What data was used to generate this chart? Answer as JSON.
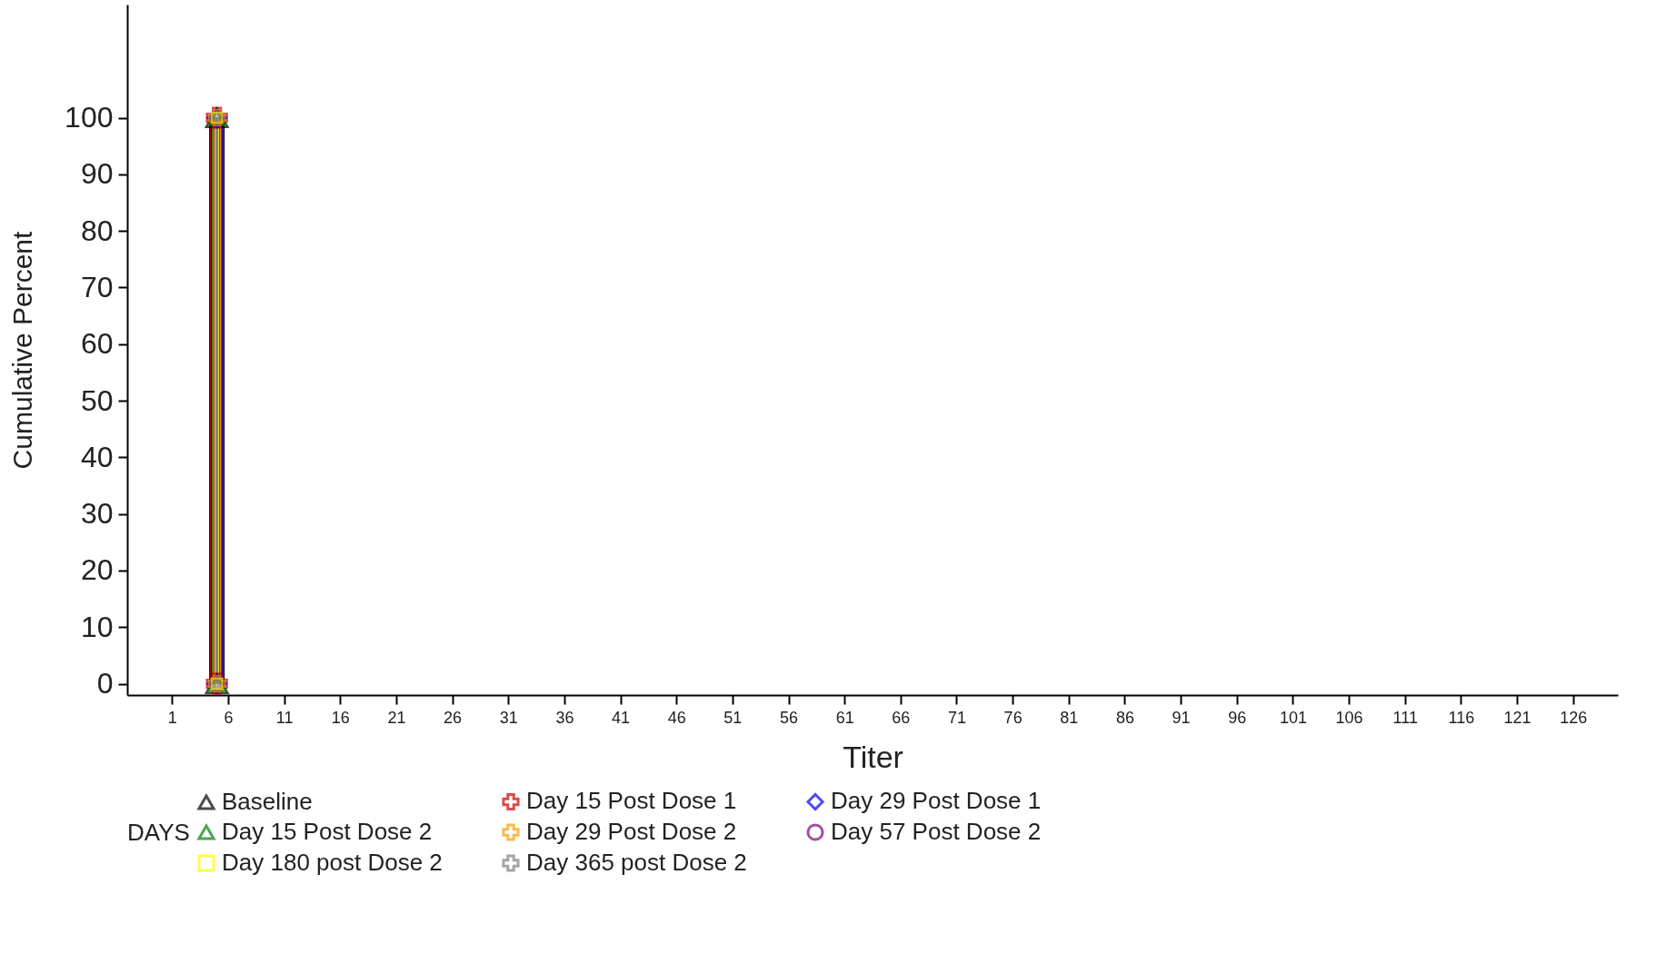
{
  "chart_data": {
    "type": "line",
    "xlabel": "Titer",
    "ylabel": "Cumulative Percent",
    "legend_title": "DAYS",
    "legend": "bottom",
    "grid": false,
    "x": [
      5,
      5
    ],
    "xlim": [
      -3,
      130
    ],
    "ylim": [
      -2,
      120
    ],
    "xticks": [
      1,
      6,
      11,
      16,
      21,
      26,
      31,
      36,
      41,
      46,
      51,
      56,
      61,
      66,
      71,
      76,
      81,
      86,
      91,
      96,
      101,
      106,
      111,
      116,
      121,
      126
    ],
    "yticks": [
      0,
      10,
      20,
      30,
      40,
      50,
      60,
      70,
      80,
      90,
      100
    ],
    "series": [
      {
        "name": "Baseline",
        "color": "#000000",
        "marker": "triangle",
        "values": [
          0,
          100
        ]
      },
      {
        "name": "Day 15 Post Dose 1",
        "color": "#cc0000",
        "marker": "cross",
        "values": [
          0,
          100
        ]
      },
      {
        "name": "Day 29 Post Dose 1",
        "color": "#0000ff",
        "marker": "diamond",
        "values": [
          0,
          100
        ]
      },
      {
        "name": "Day 15 Post Dose 2",
        "color": "#008000",
        "marker": "triangle",
        "values": [
          0,
          100
        ]
      },
      {
        "name": "Day 29 Post Dose 2",
        "color": "#f5a000",
        "marker": "cross",
        "values": [
          0,
          100
        ]
      },
      {
        "name": "Day 57 Post Dose 2",
        "color": "#800080",
        "marker": "circle",
        "values": [
          0,
          100
        ]
      },
      {
        "name": "Day 180 post Dose 2",
        "color": "#ffff00",
        "marker": "square",
        "values": [
          0,
          100
        ]
      },
      {
        "name": "Day 365 post Dose 2",
        "color": "#808080",
        "marker": "cross",
        "values": [
          0,
          100
        ]
      }
    ]
  }
}
